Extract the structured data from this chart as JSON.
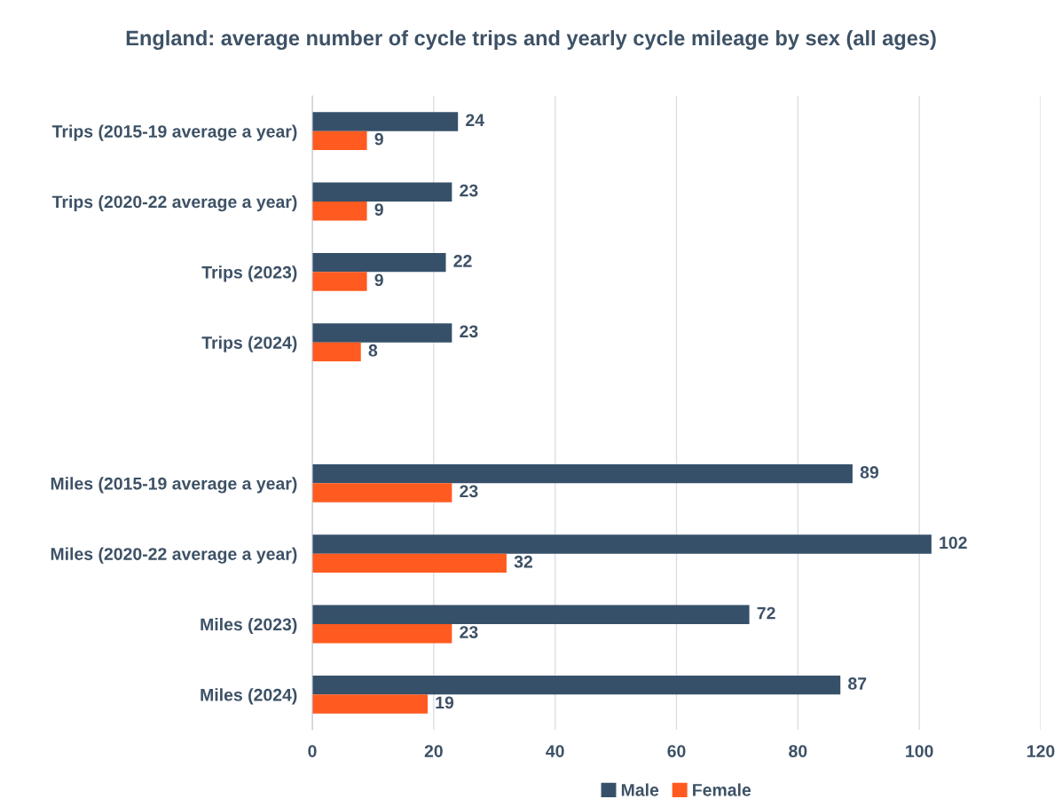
{
  "chart_data": {
    "type": "bar",
    "orientation": "horizontal",
    "title": "England: average number of cycle trips and yearly cycle mileage by sex (all ages)",
    "categories": [
      "Trips (2015-19 average a year)",
      "Trips (2020-22 average a year)",
      "Trips (2023)",
      "Trips (2024)",
      null,
      "Miles (2015-19 average a year)",
      "Miles (2020-22 average a year)",
      "Miles (2023)",
      "Miles (2024)"
    ],
    "series": [
      {
        "name": "Male",
        "color": "#36506a",
        "values": [
          24,
          23,
          22,
          23,
          null,
          89,
          102,
          72,
          87
        ]
      },
      {
        "name": "Female",
        "color": "#ff5a1f",
        "values": [
          9,
          9,
          9,
          8,
          null,
          23,
          32,
          23,
          19
        ]
      }
    ],
    "xlim": [
      0,
      120
    ],
    "xticks": [
      0,
      20,
      40,
      60,
      80,
      100,
      120
    ],
    "grid": "x",
    "legend": "bottom",
    "data_labels": true
  }
}
